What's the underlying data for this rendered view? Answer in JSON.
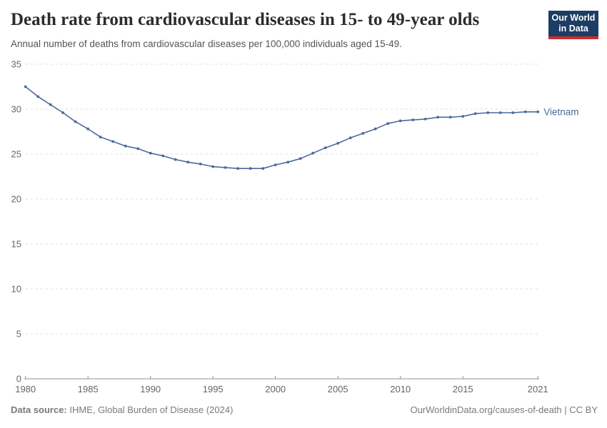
{
  "header": {
    "title": "Death rate from cardiovascular diseases in 15- to 49-year olds",
    "subtitle": "Annual number of deaths from cardiovascular diseases per 100,000 individuals aged 15-49."
  },
  "logo": {
    "line1": "Our World",
    "line2": "in Data"
  },
  "footer": {
    "source_label": "Data source:",
    "source_text": " IHME, Global Burden of Disease (2024)",
    "attribution": "OurWorldinData.org/causes-of-death | CC BY"
  },
  "colors": {
    "series": "#4C6A9C",
    "grid": "#dcdcdc",
    "axis": "#8f8f8f",
    "tick_label": "#666666",
    "logo_bg": "#1d3d63",
    "logo_accent": "#cb2d30"
  },
  "chart_data": {
    "type": "line",
    "title": "Death rate from cardiovascular diseases in 15- to 49-year olds",
    "subtitle": "Annual number of deaths from cardiovascular diseases per 100,000 individuals aged 15-49.",
    "xlabel": "",
    "ylabel": "",
    "ylim": [
      0,
      35
    ],
    "yticks": [
      0,
      5,
      10,
      15,
      20,
      25,
      30,
      35
    ],
    "xticks": [
      1980,
      1985,
      1990,
      1995,
      2000,
      2005,
      2010,
      2015,
      2021
    ],
    "grid": "horizontal-dashed",
    "legend_position": "end-of-line",
    "x": [
      1980,
      1981,
      1982,
      1983,
      1984,
      1985,
      1986,
      1987,
      1988,
      1989,
      1990,
      1991,
      1992,
      1993,
      1994,
      1995,
      1996,
      1997,
      1998,
      1999,
      2000,
      2001,
      2002,
      2003,
      2004,
      2005,
      2006,
      2007,
      2008,
      2009,
      2010,
      2011,
      2012,
      2013,
      2014,
      2015,
      2016,
      2017,
      2018,
      2019,
      2020,
      2021
    ],
    "series": [
      {
        "name": "Vietnam",
        "color": "#4C6A9C",
        "values": [
          32.5,
          31.4,
          30.5,
          29.6,
          28.6,
          27.8,
          26.9,
          26.4,
          25.9,
          25.6,
          25.1,
          24.8,
          24.4,
          24.1,
          23.9,
          23.6,
          23.5,
          23.4,
          23.4,
          23.4,
          23.8,
          24.1,
          24.5,
          25.1,
          25.7,
          26.2,
          26.8,
          27.3,
          27.8,
          28.4,
          28.7,
          28.8,
          28.9,
          29.1,
          29.1,
          29.2,
          29.5,
          29.6,
          29.6,
          29.6,
          29.7,
          29.7
        ]
      }
    ]
  }
}
